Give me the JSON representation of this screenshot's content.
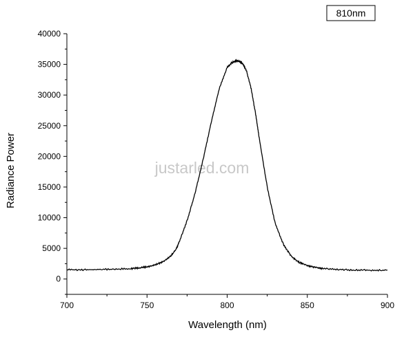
{
  "chart_data": {
    "type": "line",
    "title": "",
    "xlabel": "Wavelength (nm)",
    "ylabel": "Radiance Power",
    "xlim": [
      700,
      900
    ],
    "ylim": [
      -2500,
      40000
    ],
    "x_ticks": [
      "700",
      "750",
      "800",
      "850",
      "900"
    ],
    "y_ticks": [
      "0",
      "5000",
      "10000",
      "15000",
      "20000",
      "25000",
      "30000",
      "35000",
      "40000"
    ],
    "legend": "810nm",
    "legend_position": "top-right",
    "grid": false,
    "series": [
      {
        "x": [
          700,
          710,
          720,
          730,
          740,
          745,
          750,
          755,
          760,
          765,
          768,
          770,
          775,
          780,
          785,
          790,
          795,
          800,
          803,
          806,
          808,
          810,
          812,
          815,
          818,
          820,
          825,
          830,
          835,
          840,
          845,
          850,
          855,
          860,
          870,
          880,
          890,
          900
        ],
        "y": [
          1500,
          1500,
          1550,
          1600,
          1700,
          1800,
          2000,
          2300,
          2800,
          3800,
          4800,
          6000,
          9500,
          14000,
          19500,
          25500,
          31000,
          34500,
          35300,
          35600,
          35500,
          35000,
          34000,
          31000,
          26500,
          23000,
          15000,
          9000,
          5700,
          3700,
          2700,
          2200,
          1900,
          1700,
          1550,
          1450,
          1450,
          1450
        ]
      }
    ]
  },
  "watermark": "justarled.com",
  "colors": {
    "line": "#000000",
    "axis": "#000000",
    "watermark": "#c8c8c8"
  }
}
